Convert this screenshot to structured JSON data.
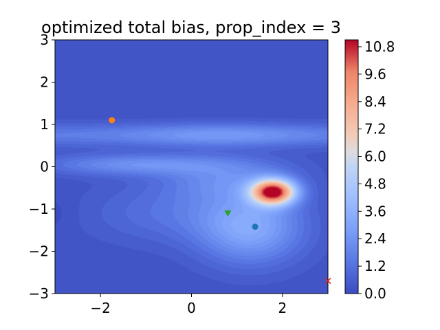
{
  "chart_data": {
    "type": "heatmap",
    "title": "optimized total bias, prop_index = 3",
    "xlim": [
      -3,
      3
    ],
    "ylim": [
      -3,
      3
    ],
    "x_ticks": [
      {
        "value": -2,
        "label": "−2"
      },
      {
        "value": 0,
        "label": "0"
      },
      {
        "value": 2,
        "label": "2"
      }
    ],
    "y_ticks": [
      {
        "value": 3,
        "label": "3"
      },
      {
        "value": 2,
        "label": "2"
      },
      {
        "value": 1,
        "label": "1"
      },
      {
        "value": 0,
        "label": "0"
      },
      {
        "value": -1,
        "label": "−1"
      },
      {
        "value": -2,
        "label": "−2"
      },
      {
        "value": -3,
        "label": "−3"
      }
    ],
    "colormap": "coolwarm",
    "colorbar": {
      "range": [
        0.0,
        11.1
      ],
      "ticks": [
        {
          "value": 0.0,
          "label": "0.0"
        },
        {
          "value": 1.2,
          "label": "1.2"
        },
        {
          "value": 2.4,
          "label": "2.4"
        },
        {
          "value": 3.6,
          "label": "3.6"
        },
        {
          "value": 4.8,
          "label": "4.8"
        },
        {
          "value": 6.0,
          "label": "6.0"
        },
        {
          "value": 7.2,
          "label": "7.2"
        },
        {
          "value": 8.4,
          "label": "8.4"
        },
        {
          "value": 9.6,
          "label": "9.6"
        },
        {
          "value": 10.8,
          "label": "10.8"
        }
      ]
    },
    "field_features": [
      {
        "kind": "peak",
        "x": 1.8,
        "y": -0.6,
        "value": 10.9
      },
      {
        "kind": "ridge",
        "y": 0.7,
        "value": 3.2
      },
      {
        "kind": "ridge",
        "y": 0.0,
        "value": 2.8
      },
      {
        "kind": "lobe",
        "x": 1.2,
        "y": -1.5,
        "value": 3.5
      }
    ],
    "markers": [
      {
        "shape": "circle",
        "color": "#ff7f0e",
        "x": -1.75,
        "y": 1.1
      },
      {
        "shape": "triangle-down",
        "color": "#2ca02c",
        "x": 0.8,
        "y": -1.1
      },
      {
        "shape": "circle",
        "color": "#1f77b4",
        "x": 1.4,
        "y": -1.42
      },
      {
        "shape": "x",
        "color": "#d62728",
        "x": 3.0,
        "y": -2.7
      }
    ]
  }
}
